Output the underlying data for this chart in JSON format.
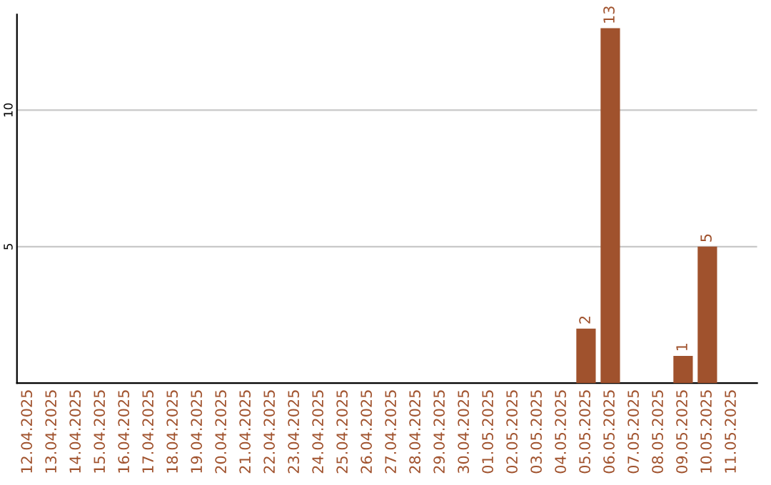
{
  "chart_data": {
    "type": "bar",
    "categories": [
      "12.04.2025",
      "13.04.2025",
      "14.04.2025",
      "15.04.2025",
      "16.04.2025",
      "17.04.2025",
      "18.04.2025",
      "19.04.2025",
      "20.04.2025",
      "21.04.2025",
      "22.04.2025",
      "23.04.2025",
      "24.04.2025",
      "25.04.2025",
      "26.04.2025",
      "27.04.2025",
      "28.04.2025",
      "29.04.2025",
      "30.04.2025",
      "01.05.2025",
      "02.05.2025",
      "03.05.2025",
      "04.05.2025",
      "05.05.2025",
      "06.05.2025",
      "07.05.2025",
      "08.05.2025",
      "09.05.2025",
      "10.05.2025",
      "11.05.2025"
    ],
    "values": [
      0,
      0,
      0,
      0,
      0,
      0,
      0,
      0,
      0,
      0,
      0,
      0,
      0,
      0,
      0,
      0,
      0,
      0,
      0,
      0,
      0,
      0,
      0,
      2,
      13,
      0,
      0,
      1,
      5,
      0
    ],
    "value_labels": [
      null,
      null,
      null,
      null,
      null,
      null,
      null,
      null,
      null,
      null,
      null,
      null,
      null,
      null,
      null,
      null,
      null,
      null,
      null,
      null,
      null,
      null,
      null,
      "2",
      "13",
      null,
      null,
      "1",
      "5",
      null
    ],
    "color": "#a0522d",
    "ylim": [
      0,
      13.5
    ],
    "yticks": [
      5,
      10
    ],
    "grid": "y"
  }
}
